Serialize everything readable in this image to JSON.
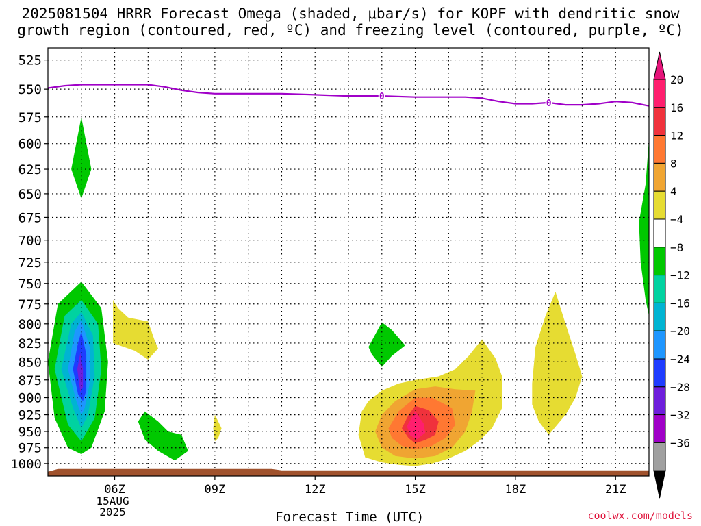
{
  "title_line1": "2025081504 HRRR Forecast Omega (shaded, μbar/s) for KOPF with dendritic snow",
  "title_line2": "growth region (contoured, red, ºC) and freezing level (contoured, purple, ºC)",
  "credit": "coolwx.com/models",
  "chart_data": {
    "type": "contour",
    "xlabel": "Forecast Time (UTC)",
    "x_ticks": [
      {
        "hour": 6,
        "label": "06Z",
        "sub": [
          "15AUG",
          "2025"
        ]
      },
      {
        "hour": 9,
        "label": "09Z"
      },
      {
        "hour": 12,
        "label": "12Z"
      },
      {
        "hour": 15,
        "label": "15Z"
      },
      {
        "hour": 18,
        "label": "18Z"
      },
      {
        "hour": 21,
        "label": "21Z"
      }
    ],
    "x_range_hours": [
      4,
      22
    ],
    "y_ticks": [
      525,
      550,
      575,
      600,
      625,
      650,
      675,
      700,
      725,
      750,
      775,
      800,
      825,
      850,
      875,
      900,
      925,
      950,
      975,
      1000
    ],
    "y_range_hPa": [
      515,
      1020
    ],
    "y_scale": "log-pressure",
    "grid": "dotted",
    "colorbar": {
      "labels": [
        "20",
        "16",
        "12",
        "8",
        "4",
        "−4",
        "−8",
        "−12",
        "−16",
        "−20",
        "−24",
        "−28",
        "−32",
        "−36"
      ],
      "colors": [
        "#ff1e6e",
        "#f0323c",
        "#ff7832",
        "#f0a532",
        "#e6dc32",
        "#ffffff",
        "#00c800",
        "#00d2a0",
        "#00b4d2",
        "#1e96ff",
        "#1e3cff",
        "#6e1edc",
        "#a000c8",
        "#a0a0a0"
      ],
      "top_arrow_color": "#e6147a",
      "bottom_arrow_color": "#000000"
    },
    "freezing_level": {
      "color": "#a000c8",
      "label": "0",
      "label_hours": [
        14,
        19
      ],
      "points": [
        [
          4.0,
          549
        ],
        [
          4.5,
          547
        ],
        [
          5.0,
          546
        ],
        [
          6.0,
          546
        ],
        [
          7.0,
          546
        ],
        [
          7.5,
          548
        ],
        [
          8.0,
          551
        ],
        [
          8.5,
          553
        ],
        [
          9.0,
          554
        ],
        [
          10.0,
          554
        ],
        [
          11.0,
          554
        ],
        [
          12.0,
          555
        ],
        [
          13.0,
          556
        ],
        [
          14.0,
          556
        ],
        [
          15.0,
          557
        ],
        [
          16.0,
          557
        ],
        [
          16.5,
          557
        ],
        [
          17.0,
          558
        ],
        [
          17.5,
          561
        ],
        [
          18.0,
          563
        ],
        [
          18.5,
          563
        ],
        [
          19.0,
          562
        ],
        [
          19.5,
          564
        ],
        [
          20.0,
          564
        ],
        [
          20.5,
          563
        ],
        [
          21.0,
          561
        ],
        [
          21.5,
          562
        ],
        [
          22.0,
          565
        ]
      ]
    },
    "surface": {
      "color": "#a0522d",
      "pressure": 1012
    },
    "omega_regions": [
      {
        "color": "#00c800",
        "polygon": [
          [
            4.7,
            625
          ],
          [
            5.0,
            575
          ],
          [
            5.3,
            625
          ],
          [
            5.0,
            655
          ]
        ]
      },
      {
        "color": "#00c800",
        "polygon": [
          [
            4.0,
            850
          ],
          [
            4.3,
            775
          ],
          [
            5.0,
            748
          ],
          [
            5.6,
            780
          ],
          [
            5.8,
            850
          ],
          [
            5.7,
            920
          ],
          [
            5.3,
            975
          ],
          [
            5.0,
            985
          ],
          [
            4.6,
            975
          ],
          [
            4.2,
            930
          ]
        ]
      },
      {
        "color": "#00d2a0",
        "polygon": [
          [
            4.2,
            860
          ],
          [
            4.5,
            790
          ],
          [
            5.0,
            770
          ],
          [
            5.5,
            800
          ],
          [
            5.6,
            860
          ],
          [
            5.4,
            930
          ],
          [
            5.0,
            965
          ],
          [
            4.6,
            940
          ]
        ]
      },
      {
        "color": "#00b4d2",
        "polygon": [
          [
            4.4,
            860
          ],
          [
            4.7,
            800
          ],
          [
            5.0,
            785
          ],
          [
            5.35,
            815
          ],
          [
            5.4,
            870
          ],
          [
            5.2,
            925
          ],
          [
            5.0,
            945
          ],
          [
            4.75,
            915
          ]
        ]
      },
      {
        "color": "#1e96ff",
        "polygon": [
          [
            4.6,
            860
          ],
          [
            4.8,
            810
          ],
          [
            5.0,
            795
          ],
          [
            5.25,
            830
          ],
          [
            5.25,
            880
          ],
          [
            5.1,
            915
          ],
          [
            5.0,
            925
          ],
          [
            4.85,
            905
          ]
        ]
      },
      {
        "color": "#1e3cff",
        "polygon": [
          [
            4.75,
            860
          ],
          [
            4.9,
            825
          ],
          [
            5.0,
            810
          ],
          [
            5.15,
            840
          ],
          [
            5.15,
            890
          ],
          [
            5.05,
            905
          ],
          [
            4.9,
            895
          ]
        ]
      },
      {
        "color": "#6e1edc",
        "polygon": [
          [
            4.88,
            860
          ],
          [
            4.97,
            838
          ],
          [
            5.05,
            860
          ],
          [
            5.05,
            885
          ],
          [
            4.97,
            892
          ]
        ]
      },
      {
        "color": "#e6dc32",
        "polygon": [
          [
            5.95,
            770
          ],
          [
            6.1,
            780
          ],
          [
            6.4,
            792
          ],
          [
            7.0,
            797
          ],
          [
            7.2,
            822
          ],
          [
            7.3,
            832
          ],
          [
            7.0,
            847
          ],
          [
            6.6,
            835
          ],
          [
            5.95,
            825
          ]
        ]
      },
      {
        "color": "#00c800",
        "polygon": [
          [
            6.7,
            935
          ],
          [
            6.9,
            920
          ],
          [
            7.3,
            935
          ],
          [
            7.6,
            950
          ],
          [
            8.0,
            955
          ],
          [
            8.2,
            980
          ],
          [
            7.8,
            995
          ],
          [
            7.3,
            980
          ],
          [
            6.9,
            962
          ]
        ]
      },
      {
        "color": "#e6dc32",
        "polygon": [
          [
            9.0,
            925
          ],
          [
            9.1,
            935
          ],
          [
            9.2,
            945
          ],
          [
            9.1,
            960
          ],
          [
            9.0,
            965
          ],
          [
            8.95,
            945
          ]
        ]
      },
      {
        "color": "#00c800",
        "polygon": [
          [
            13.6,
            830
          ],
          [
            14.0,
            798
          ],
          [
            14.3,
            808
          ],
          [
            14.7,
            828
          ],
          [
            14.3,
            842
          ],
          [
            14.0,
            857
          ],
          [
            13.7,
            840
          ]
        ]
      },
      {
        "color": "#e6dc32",
        "polygon": [
          [
            13.3,
            955
          ],
          [
            13.4,
            920
          ],
          [
            13.6,
            905
          ],
          [
            14.0,
            890
          ],
          [
            14.5,
            880
          ],
          [
            15.0,
            875
          ],
          [
            15.7,
            870
          ],
          [
            16.2,
            860
          ],
          [
            16.6,
            842
          ],
          [
            17.0,
            820
          ],
          [
            17.4,
            845
          ],
          [
            17.6,
            870
          ],
          [
            17.6,
            915
          ],
          [
            17.3,
            945
          ],
          [
            16.9,
            965
          ],
          [
            16.5,
            980
          ],
          [
            16.0,
            992
          ],
          [
            15.5,
            1000
          ],
          [
            15.0,
            1004
          ],
          [
            14.5,
            1002
          ],
          [
            14.0,
            998
          ],
          [
            13.5,
            990
          ]
        ]
      },
      {
        "color": "#f0a532",
        "polygon": [
          [
            13.8,
            950
          ],
          [
            14.0,
            925
          ],
          [
            14.4,
            905
          ],
          [
            15.0,
            888
          ],
          [
            15.6,
            884
          ],
          [
            16.2,
            888
          ],
          [
            16.8,
            890
          ],
          [
            16.7,
            920
          ],
          [
            16.5,
            950
          ],
          [
            16.1,
            975
          ],
          [
            15.6,
            988
          ],
          [
            15.0,
            992
          ],
          [
            14.4,
            988
          ],
          [
            14.0,
            975
          ]
        ]
      },
      {
        "color": "#ff7832",
        "polygon": [
          [
            14.2,
            945
          ],
          [
            14.5,
            920
          ],
          [
            15.0,
            900
          ],
          [
            15.5,
            900
          ],
          [
            16.1,
            915
          ],
          [
            16.2,
            940
          ],
          [
            15.9,
            960
          ],
          [
            15.5,
            972
          ],
          [
            15.0,
            978
          ],
          [
            14.6,
            972
          ],
          [
            14.3,
            960
          ]
        ]
      },
      {
        "color": "#f0323c",
        "polygon": [
          [
            14.6,
            945
          ],
          [
            14.8,
            925
          ],
          [
            15.0,
            912
          ],
          [
            15.4,
            918
          ],
          [
            15.7,
            935
          ],
          [
            15.6,
            955
          ],
          [
            15.3,
            963
          ],
          [
            15.0,
            968
          ],
          [
            14.8,
            960
          ]
        ]
      },
      {
        "color": "#ff1e6e",
        "polygon": [
          [
            14.75,
            942
          ],
          [
            15.0,
            920
          ],
          [
            15.25,
            938
          ],
          [
            15.3,
            952
          ],
          [
            15.05,
            962
          ],
          [
            14.85,
            956
          ]
        ]
      },
      {
        "color": "#e6dc32",
        "polygon": [
          [
            18.5,
            880
          ],
          [
            18.6,
            830
          ],
          [
            18.9,
            790
          ],
          [
            19.2,
            760
          ],
          [
            19.5,
            800
          ],
          [
            19.8,
            840
          ],
          [
            20.0,
            870
          ],
          [
            19.8,
            900
          ],
          [
            19.5,
            925
          ],
          [
            19.0,
            955
          ],
          [
            18.7,
            935
          ],
          [
            18.5,
            910
          ]
        ]
      },
      {
        "color": "#00c800",
        "polygon": [
          [
            22.0,
            595
          ],
          [
            21.9,
            640
          ],
          [
            21.7,
            680
          ],
          [
            21.75,
            725
          ],
          [
            21.9,
            770
          ],
          [
            22.0,
            790
          ]
        ]
      }
    ]
  }
}
